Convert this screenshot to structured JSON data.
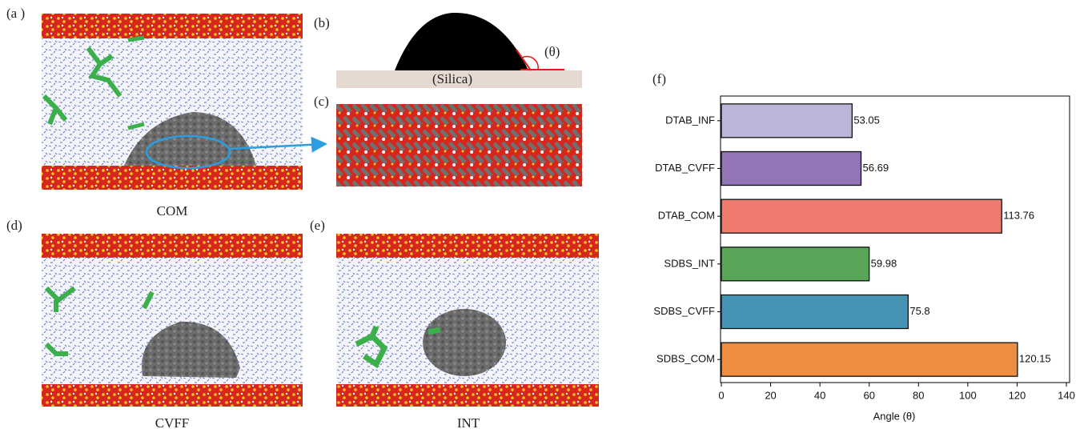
{
  "panels": {
    "a": {
      "label": "(a )",
      "caption": "COM"
    },
    "b": {
      "label": "(b)",
      "substrate": "(Silica)",
      "angle": "(θ)"
    },
    "c": {
      "label": "(c)"
    },
    "d": {
      "label": "(d)",
      "caption": "CVFF"
    },
    "e": {
      "label": "(e)",
      "caption": "INT"
    }
  },
  "chart_data": {
    "type": "barh",
    "panel_label": "(f)",
    "xlabel": "Angle (θ)",
    "categories": [
      "DTAB_INF",
      "DTAB_CVFF",
      "DTAB_COM",
      "SDBS_INT",
      "SDBS_CVFF",
      "SDBS_COM"
    ],
    "values": [
      53.05,
      56.69,
      113.76,
      59.98,
      75.8,
      120.15
    ],
    "colors": [
      "#bcb5da",
      "#9275b4",
      "#ee7b6e",
      "#58a557",
      "#4694b3",
      "#ee8c40"
    ],
    "xlim": [
      0,
      140
    ],
    "xticks": [
      0,
      20,
      40,
      60,
      80,
      100,
      120,
      140
    ]
  }
}
